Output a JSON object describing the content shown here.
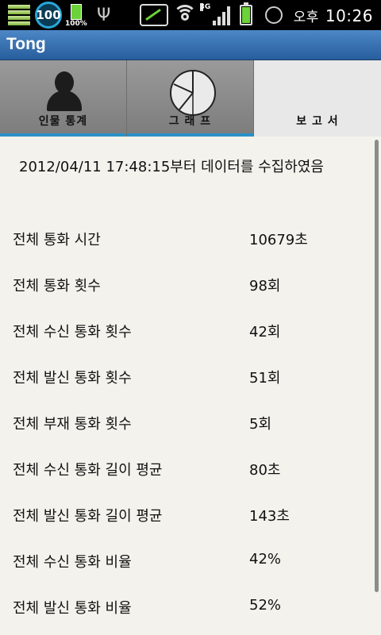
{
  "status_bar": {
    "battery_level_badge": "100",
    "battery_small_percent": "100%",
    "network_type": "3G",
    "ampm": "오후",
    "time": "10:26",
    "icons": [
      "notification-grid-icon",
      "battery-badge-icon",
      "usb-icon",
      "network-blocked-icon",
      "wifi-icon",
      "signal-icon",
      "battery-icon",
      "alarm-icon"
    ]
  },
  "app": {
    "title": "Tong"
  },
  "tabs": [
    {
      "label": "인물 통계",
      "icon": "person-icon",
      "active": false
    },
    {
      "label": "그 래 프",
      "icon": "pie-chart-icon",
      "active": false
    },
    {
      "label": "보 고 서",
      "icon": "report-icon",
      "active": true
    }
  ],
  "report": {
    "since": "2012/04/11 17:48:15부터 데이터를 수집하였음",
    "rows": [
      {
        "label": "전체 통화 시간",
        "value": "10679초"
      },
      {
        "label": "전체 통화 횟수",
        "value": "98회"
      },
      {
        "label": "전체 수신 통화 횟수",
        "value": "42회"
      },
      {
        "label": "전체 발신 통화 횟수",
        "value": "51회"
      },
      {
        "label": "전체 부재 통화 횟수",
        "value": "5회"
      },
      {
        "label": "전체 수신 통화 길이 평균",
        "value": "80초"
      },
      {
        "label": "전체 발신 통화 길이 평균",
        "value": "143초"
      },
      {
        "label": "전체 수신 통화 비율",
        "value": "42%"
      },
      {
        "label": "전체 발신 통화 비율",
        "value": "52%"
      }
    ]
  },
  "colors": {
    "accent": "#2a90c6",
    "titlebar": "#3a72b3",
    "content_bg": "#f3f2ec"
  }
}
